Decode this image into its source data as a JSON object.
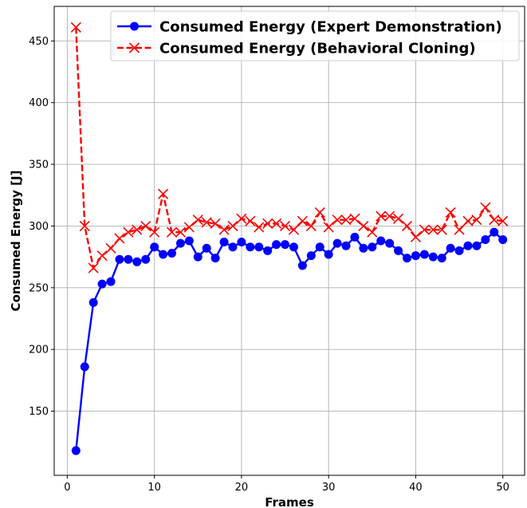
{
  "chart_data": {
    "type": "line",
    "title": "",
    "xlabel": "Frames",
    "ylabel": "Consumed Energy [J]",
    "xlim": [
      -1.5,
      52.5
    ],
    "ylim": [
      98,
      478
    ],
    "xticks": [
      0,
      10,
      20,
      30,
      40,
      50
    ],
    "yticks": [
      150,
      200,
      250,
      300,
      350,
      400,
      450
    ],
    "grid": true,
    "legend_position": "top-right",
    "x": [
      1,
      2,
      3,
      4,
      5,
      6,
      7,
      8,
      9,
      10,
      11,
      12,
      13,
      14,
      15,
      16,
      17,
      18,
      19,
      20,
      21,
      22,
      23,
      24,
      25,
      26,
      27,
      28,
      29,
      30,
      31,
      32,
      33,
      34,
      35,
      36,
      37,
      38,
      39,
      40,
      41,
      42,
      43,
      44,
      45,
      46,
      47,
      48,
      49,
      50
    ],
    "series": [
      {
        "name": "Consumed Energy (Expert Demonstration)",
        "color": "#0000ff",
        "marker": "circle",
        "linestyle": "solid",
        "values": [
          118,
          186,
          238,
          253,
          255,
          273,
          273,
          271,
          273,
          283,
          277,
          278,
          286,
          288,
          275,
          282,
          274,
          287,
          283,
          287,
          283,
          283,
          280,
          285,
          285,
          283,
          268,
          276,
          283,
          277,
          286,
          284,
          291,
          282,
          283,
          288,
          286,
          280,
          274,
          276,
          277,
          275,
          274,
          282,
          280,
          284,
          284,
          289,
          295,
          289
        ]
      },
      {
        "name": "Consumed Energy (Behavioral Cloning)",
        "color": "#ff0000",
        "marker": "x",
        "linestyle": "dashed",
        "values": [
          461,
          300,
          266,
          276,
          282,
          290,
          295,
          297,
          300,
          295,
          326,
          295,
          295,
          299,
          305,
          303,
          302,
          297,
          300,
          306,
          304,
          299,
          302,
          302,
          300,
          297,
          304,
          300,
          311,
          299,
          305,
          305,
          306,
          300,
          295,
          308,
          308,
          306,
          300,
          291,
          297,
          297,
          297,
          311,
          297,
          304,
          305,
          315,
          305,
          304
        ]
      }
    ]
  }
}
